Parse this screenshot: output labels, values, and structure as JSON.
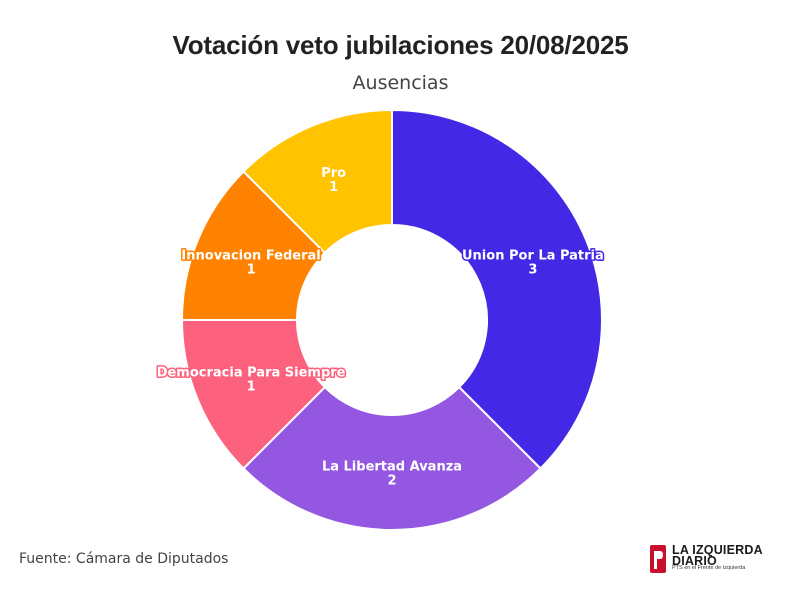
{
  "chart_data": {
    "type": "pie",
    "variant": "donut",
    "title": "Votación veto jubilaciones 20/08/2025",
    "subtitle": "Ausencias",
    "categories": [
      "Union Por La Patria",
      "La Libertad Avanza",
      "Democracia Para Siempre",
      "Innovacion Federal",
      "Pro"
    ],
    "values": [
      3,
      2,
      1,
      1,
      1
    ],
    "colors": [
      "#4329e6",
      "#9457e1",
      "#fc617d",
      "#ff8300",
      "#ffc300"
    ],
    "start": "top",
    "direction": "clockwise",
    "legend": "none"
  },
  "source": "Fuente: Cámara de Diputados",
  "logo": {
    "name_line1": "LA IZQUIERDA",
    "name_line2": "DIARIO",
    "tagline": "PTS en el Frente de Izquierda"
  }
}
